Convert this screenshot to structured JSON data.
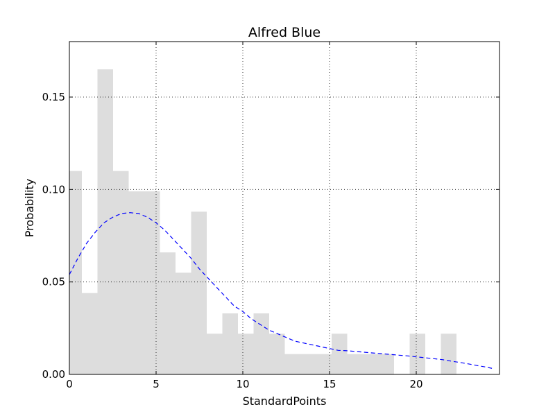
{
  "chart_data": {
    "type": "bar",
    "title": "Alfred Blue",
    "xlabel": "StandardPoints",
    "ylabel": "Probability",
    "xlim": [
      0,
      24.8
    ],
    "ylim": [
      0,
      0.18
    ],
    "x_ticks": [
      0,
      5,
      10,
      15,
      20
    ],
    "x_tick_labels": [
      "0",
      "5",
      "10",
      "15",
      "20"
    ],
    "y_ticks": [
      0.0,
      0.05,
      0.1,
      0.15
    ],
    "y_tick_labels": [
      "0.00",
      "0.05",
      "0.10",
      "0.15"
    ],
    "grid": true,
    "colors": {
      "bars": "#dddddd",
      "curve": "#0000ff"
    },
    "histogram": {
      "bin_edges": [
        0,
        0.72,
        1.62,
        2.52,
        3.42,
        4.32,
        5.22,
        6.12,
        7.02,
        7.92,
        8.82,
        9.72,
        10.62,
        11.52,
        12.42,
        13.32,
        14.22,
        15.12,
        16.02,
        16.92,
        17.82,
        18.72,
        19.62,
        20.52,
        21.42,
        22.32
      ],
      "values": [
        0.11,
        0.044,
        0.165,
        0.11,
        0.099,
        0.099,
        0.066,
        0.055,
        0.088,
        0.022,
        0.033,
        0.022,
        0.033,
        0.022,
        0.011,
        0.011,
        0.011,
        0.022,
        0.011,
        0.011,
        0.011,
        0,
        0.022,
        0,
        0.022
      ]
    },
    "density_curve": {
      "style": "dashed",
      "x": [
        0,
        0.5,
        1,
        1.5,
        2,
        2.5,
        3,
        3.5,
        4,
        4.5,
        5,
        5.5,
        6,
        6.5,
        7,
        7.5,
        8,
        8.5,
        9,
        9.5,
        10,
        10.5,
        11,
        11.5,
        12,
        12.5,
        13,
        13.5,
        14,
        14.5,
        15,
        15.5,
        16,
        16.5,
        17,
        17.5,
        18,
        18.5,
        19,
        19.5,
        20,
        20.5,
        21,
        21.5,
        22,
        22.5,
        23,
        23.5,
        24,
        24.5
      ],
      "y": [
        0.054,
        0.063,
        0.071,
        0.077,
        0.082,
        0.085,
        0.087,
        0.0875,
        0.087,
        0.085,
        0.082,
        0.078,
        0.073,
        0.068,
        0.063,
        0.057,
        0.052,
        0.047,
        0.042,
        0.037,
        0.034,
        0.03,
        0.027,
        0.024,
        0.022,
        0.02,
        0.018,
        0.017,
        0.016,
        0.015,
        0.014,
        0.013,
        0.0128,
        0.0124,
        0.012,
        0.0116,
        0.0112,
        0.0108,
        0.0104,
        0.01,
        0.0095,
        0.009,
        0.0085,
        0.008,
        0.0072,
        0.0065,
        0.0057,
        0.0048,
        0.004,
        0.003
      ]
    }
  }
}
